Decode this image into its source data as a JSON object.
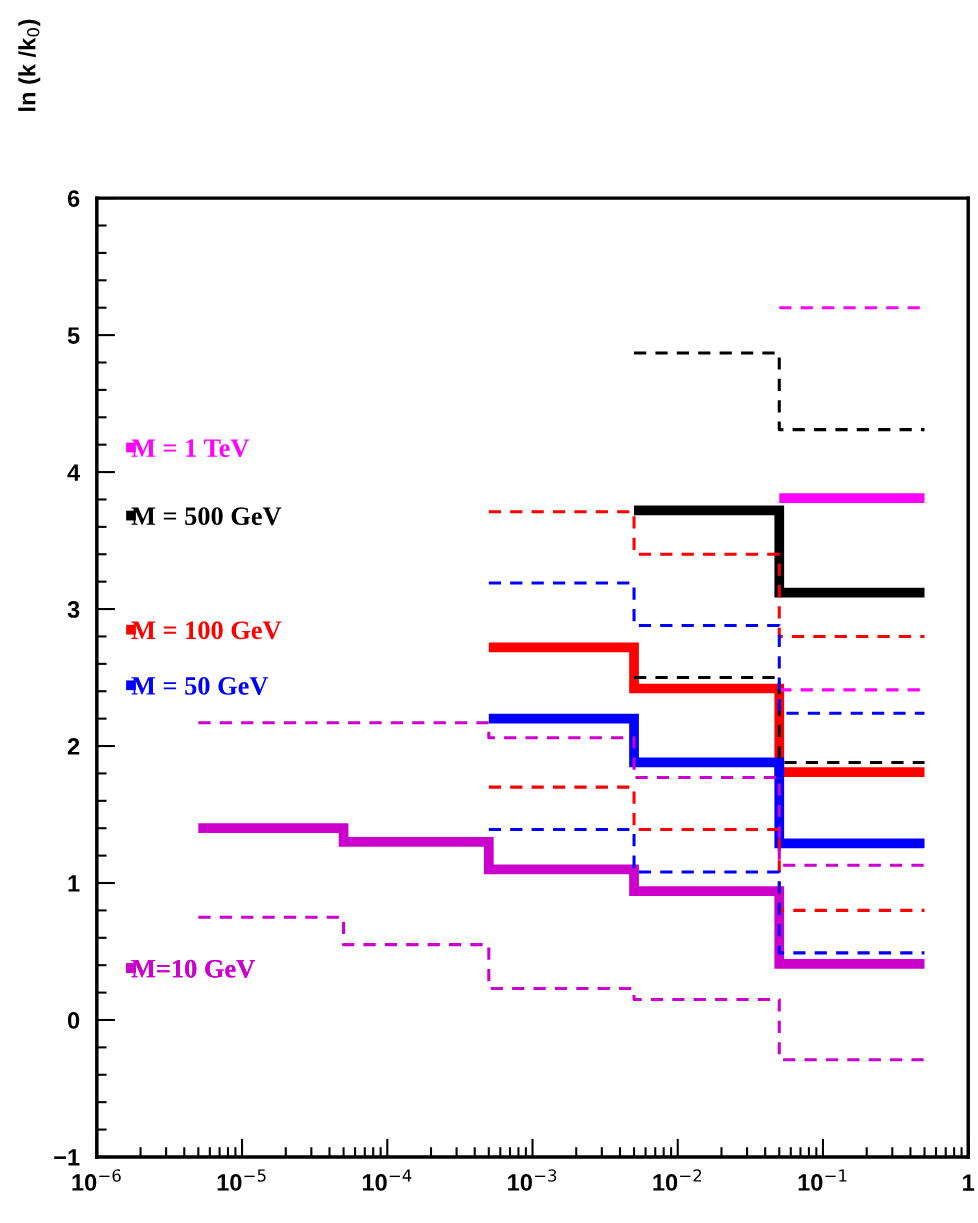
{
  "chart_data": {
    "type": "step",
    "ylabel": "ln (k /k$_{0}$)",
    "log": "x",
    "xlim": [
      1e-06,
      1
    ],
    "xticks": [
      {
        "value": 1e-06,
        "label": "10$^{−6}$"
      },
      {
        "value": 1e-05,
        "label": "10$^{−5}$"
      },
      {
        "value": 0.0001,
        "label": "10$^{−4}$"
      },
      {
        "value": 0.001,
        "label": "10$^{−3}$"
      },
      {
        "value": 0.01,
        "label": "10$^{−2}$"
      },
      {
        "value": 0.1,
        "label": "10$^{−1}$"
      },
      1
    ],
    "ylim": [
      -1,
      6
    ],
    "yticks": [
      {
        "value": -1,
        "label": "−1"
      },
      0,
      1,
      2,
      3,
      4,
      5,
      6
    ],
    "grid": false,
    "legend": "left",
    "line_style": "solid",
    "series": [
      {
        "name": "M = 1 TeV",
        "color": "#ff00ff",
        "x": [
          0.05,
          0.5
        ],
        "values": [
          3.81,
          3.81
        ]
      },
      {
        "name": "M = 500 GeV",
        "color": "#000000",
        "x": [
          0.005,
          0.05,
          0.5
        ],
        "values": [
          3.72,
          3.12,
          3.12
        ]
      },
      {
        "name": "M = 100 GeV",
        "color": "#ff0000",
        "x": [
          0.0005,
          0.005,
          0.05,
          0.5
        ],
        "values": [
          2.72,
          2.42,
          1.81,
          1.81
        ]
      },
      {
        "name": "M = 50 GeV",
        "color": "#0000ff",
        "x": [
          0.0005,
          0.005,
          0.05,
          0.5
        ],
        "values": [
          2.2,
          1.88,
          1.29,
          1.29
        ]
      },
      {
        "name": "M=10 GeV",
        "color": "#cc00cc",
        "x": [
          5e-06,
          5e-05,
          0.0005,
          0.005,
          0.05,
          0.5
        ],
        "values": [
          1.4,
          1.3,
          1.1,
          0.94,
          0.41,
          0.41
        ]
      },
      {
        "color": "#ff00ff",
        "line_style": "dashed",
        "x": [
          0.05,
          0.5
        ],
        "values": [
          5.2,
          5.2
        ]
      },
      {
        "color": "#ff00ff",
        "line_style": "dashed",
        "x": [
          0.05,
          0.5
        ],
        "values": [
          2.41,
          2.41
        ]
      },
      {
        "color": "#000000",
        "line_style": "dashed",
        "x": [
          0.005,
          0.05,
          0.5
        ],
        "values": [
          4.87,
          4.31,
          4.31
        ]
      },
      {
        "color": "#000000",
        "line_style": "dashed",
        "x": [
          0.005,
          0.05,
          0.5
        ],
        "values": [
          2.5,
          1.88,
          1.88
        ]
      },
      {
        "color": "#ff0000",
        "line_style": "dashed",
        "x": [
          0.0005,
          0.005,
          0.05,
          0.5
        ],
        "values": [
          3.71,
          3.4,
          2.8,
          2.8
        ]
      },
      {
        "color": "#ff0000",
        "line_style": "dashed",
        "x": [
          0.0005,
          0.005,
          0.05,
          0.5
        ],
        "values": [
          1.7,
          1.39,
          0.8,
          0.8
        ]
      },
      {
        "color": "#0000ff",
        "line_style": "dashed",
        "x": [
          0.0005,
          0.005,
          0.05,
          0.5
        ],
        "values": [
          3.19,
          2.88,
          2.24,
          2.24
        ]
      },
      {
        "color": "#0000ff",
        "line_style": "dashed",
        "x": [
          0.0005,
          0.005,
          0.05,
          0.5
        ],
        "values": [
          1.39,
          1.08,
          0.49,
          0.49
        ]
      },
      {
        "color": "#cc00cc",
        "line_style": "dashed",
        "x": [
          5e-06,
          5e-05,
          0.0005,
          0.005,
          0.05,
          0.5
        ],
        "values": [
          2.17,
          2.17,
          2.06,
          1.77,
          1.13,
          1.13
        ]
      },
      {
        "color": "#cc00cc",
        "line_style": "dashed",
        "x": [
          5e-06,
          5e-05,
          0.0005,
          0.005,
          0.05,
          0.5
        ],
        "values": [
          0.75,
          0.55,
          0.23,
          0.15,
          -0.29,
          -0.29
        ]
      }
    ]
  }
}
